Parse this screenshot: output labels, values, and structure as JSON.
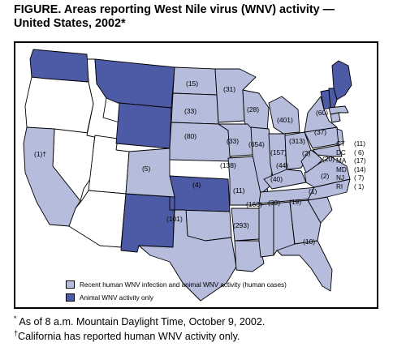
{
  "title_line1": "FIGURE. Areas reporting West Nile virus (WNV) activity —",
  "title_line2": "United States, 2002*",
  "colors": {
    "human": "#b5bcdc",
    "animal": "#4d5aa6",
    "none": "#ffffff"
  },
  "map_labels": [
    {
      "state": "WA",
      "text": "",
      "category": "animal"
    },
    {
      "state": "MT",
      "text": "",
      "category": "animal"
    },
    {
      "state": "ND",
      "text": "(15)"
    },
    {
      "state": "MN",
      "text": "(31)"
    },
    {
      "state": "SD",
      "text": "(33)"
    },
    {
      "state": "WI",
      "text": "(28)"
    },
    {
      "state": "MI",
      "text": "(401)"
    },
    {
      "state": "NE",
      "text": "(80)"
    },
    {
      "state": "IA",
      "text": "(33)"
    },
    {
      "state": "IL",
      "text": "(654)"
    },
    {
      "state": "IN",
      "text": "(157)"
    },
    {
      "state": "OH",
      "text": "(313)"
    },
    {
      "state": "PA",
      "text": "(37)"
    },
    {
      "state": "NY",
      "text": "(60)"
    },
    {
      "state": "CA",
      "text": "(1)†"
    },
    {
      "state": "CO",
      "text": "(5)"
    },
    {
      "state": "MO",
      "text": "(138)"
    },
    {
      "state": "KY",
      "text": "(44)"
    },
    {
      "state": "WV",
      "text": "(2)"
    },
    {
      "state": "VA",
      "text": "(20)"
    },
    {
      "state": "NC",
      "text": "(2)"
    },
    {
      "state": "TN",
      "text": "(40)"
    },
    {
      "state": "OK",
      "text": "(4)"
    },
    {
      "state": "AR",
      "text": "(11)"
    },
    {
      "state": "SC",
      "text": "(1)"
    },
    {
      "state": "MS",
      "text": "(168)"
    },
    {
      "state": "AL",
      "text": "(39)"
    },
    {
      "state": "GA",
      "text": "(19)"
    },
    {
      "state": "TX",
      "text": "(101)"
    },
    {
      "state": "LA",
      "text": "(293)"
    },
    {
      "state": "FL",
      "text": "(10)"
    }
  ],
  "small_states": [
    {
      "code": "CT",
      "count": "(11)"
    },
    {
      "code": "DC",
      "count": "( 6)"
    },
    {
      "code": "MA",
      "count": "(17)"
    },
    {
      "code": "MD",
      "count": "(14)"
    },
    {
      "code": "NJ",
      "count": "( 7)"
    },
    {
      "code": "RI",
      "count": "( 1)"
    }
  ],
  "legend": [
    {
      "label": "Recent human WNV infection and animal WNV activity (human cases)",
      "color": "#b5bcdc"
    },
    {
      "label": "Animal WNV activity only",
      "color": "#4d5aa6"
    }
  ],
  "footnotes": {
    "star_mark": "*",
    "star_text": "As of 8 a.m. Mountain Daylight Time, October 9, 2002.",
    "dagger_mark": "†",
    "dagger_text": "California has reported human WNV activity only."
  }
}
